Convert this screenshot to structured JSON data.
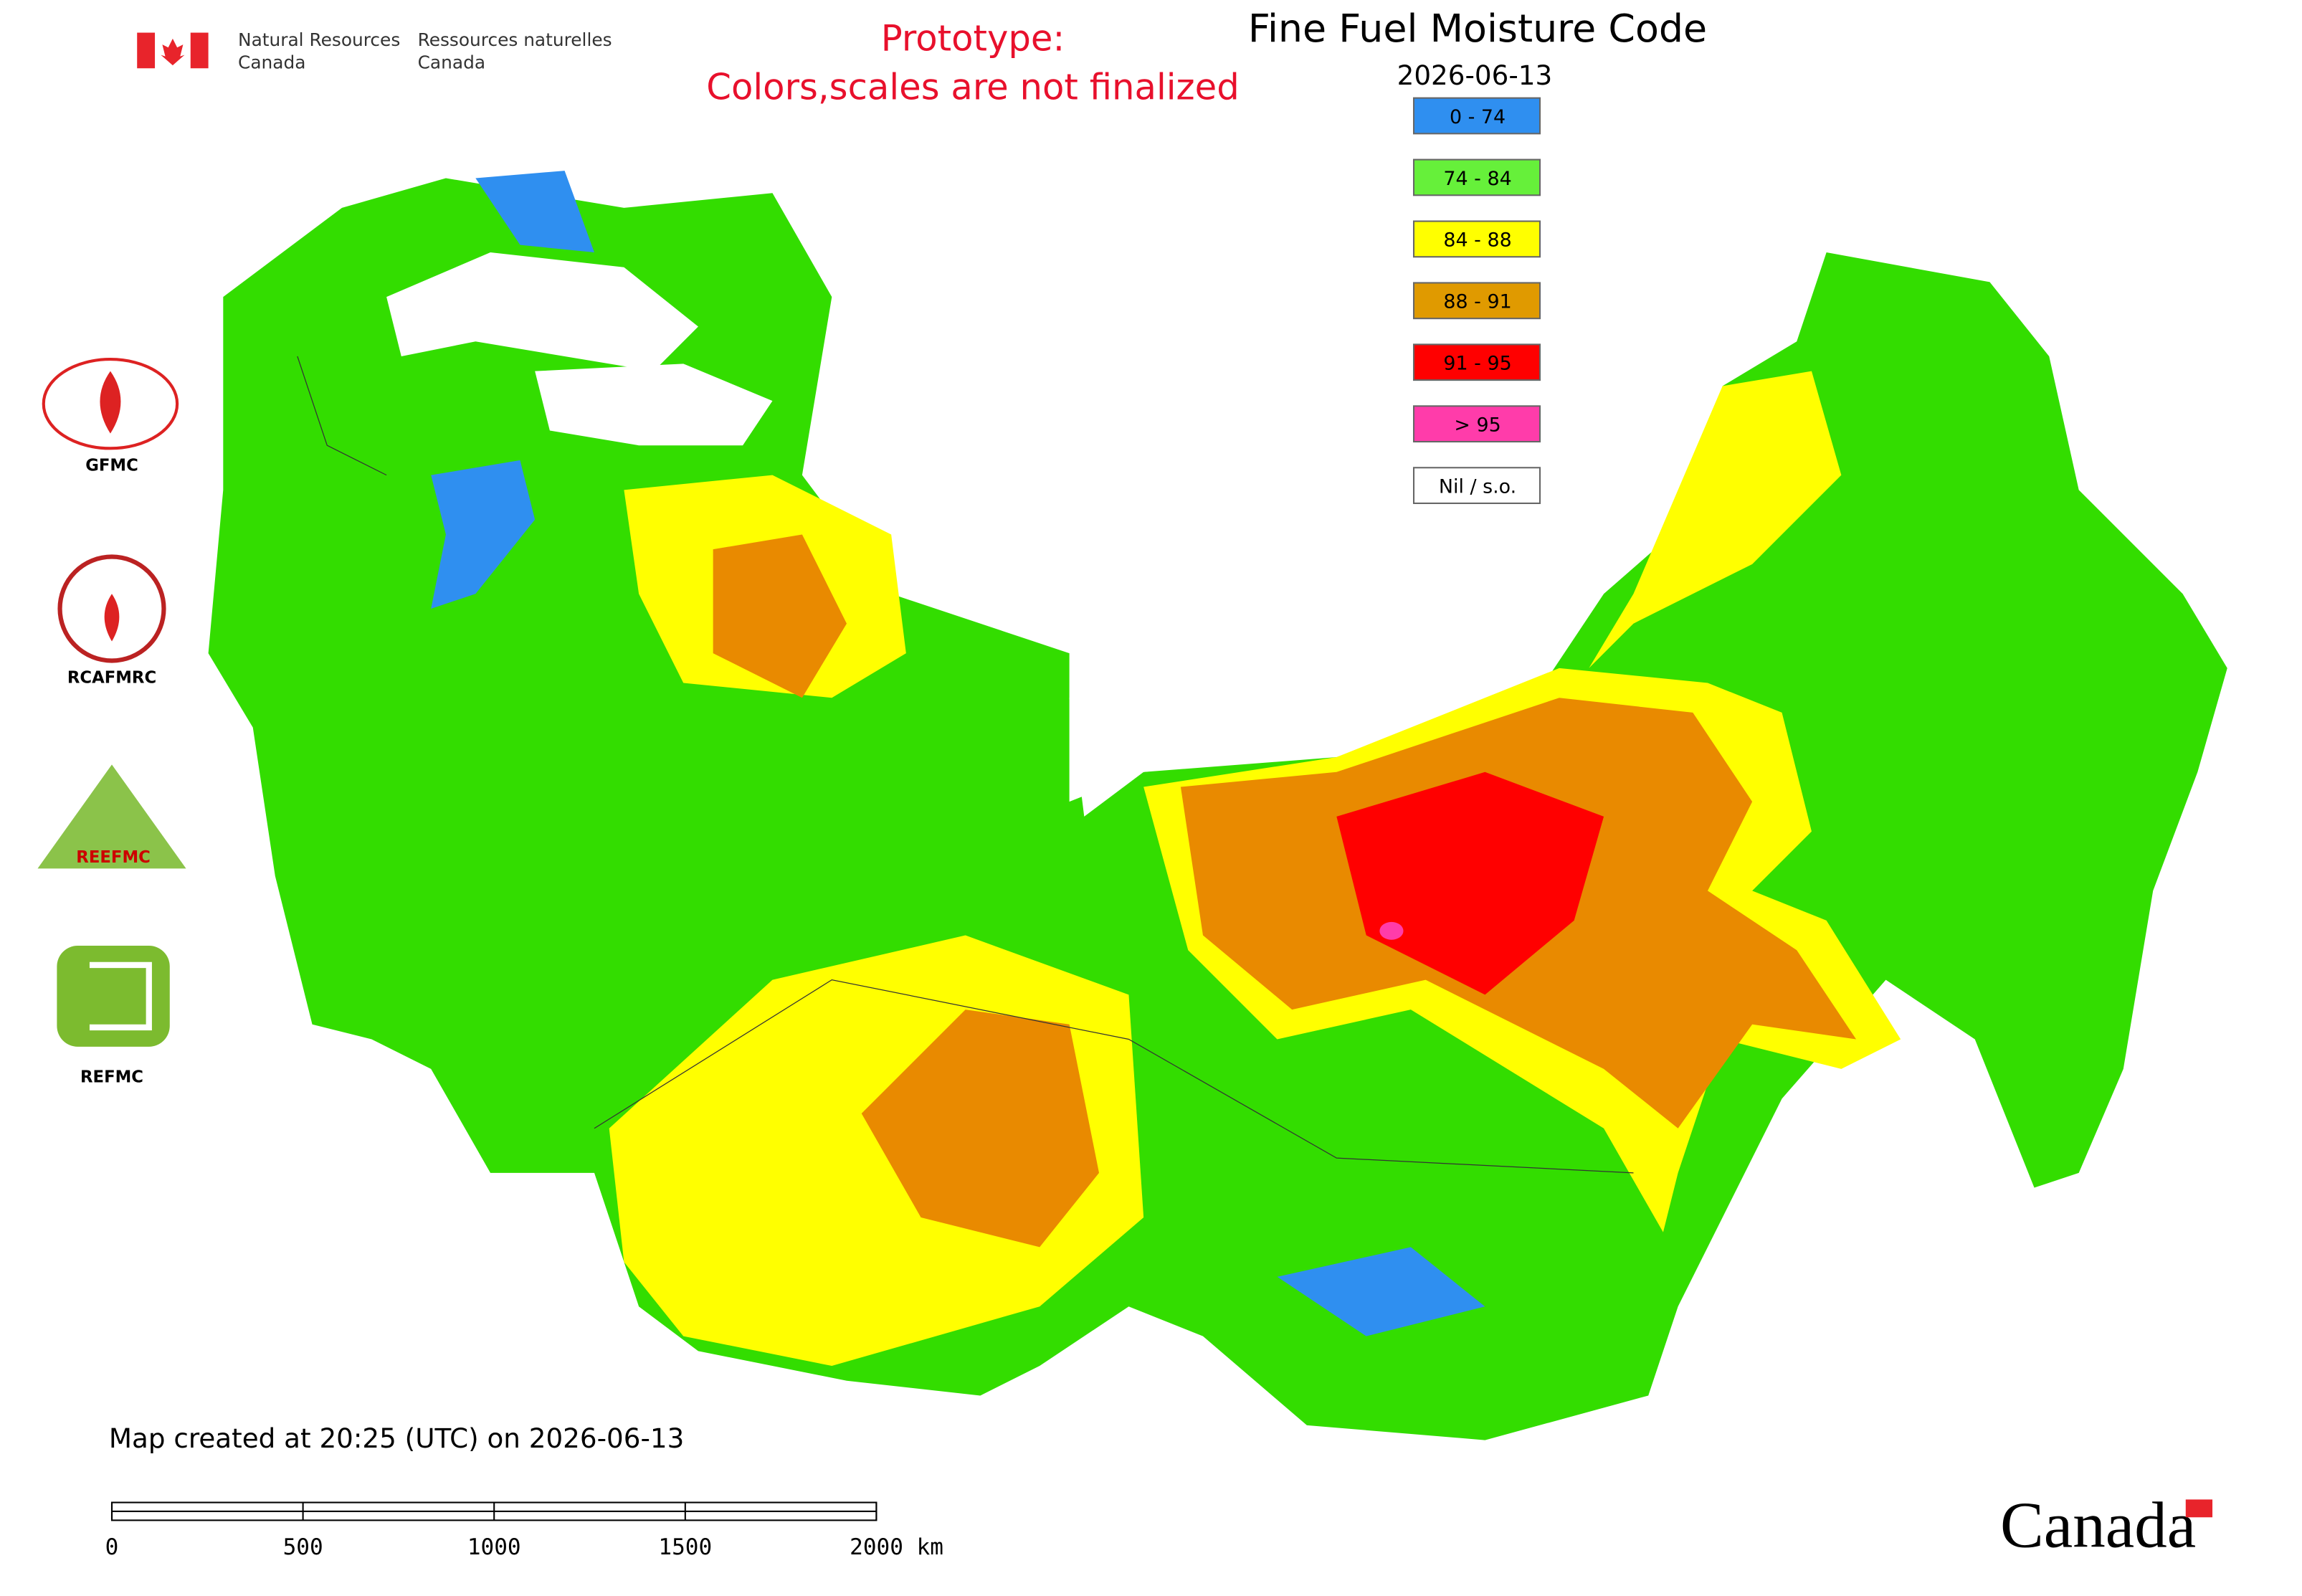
{
  "header": {
    "agency_en": [
      "Natural Resources",
      "Canada"
    ],
    "agency_fr": [
      "Ressources naturelles",
      "Canada"
    ]
  },
  "notice": [
    "Prototype:",
    "Colors,scales are not finalized"
  ],
  "title": "Fine Fuel Moisture Code",
  "date": "2026-06-13",
  "legend": [
    {
      "label": "0 - 74",
      "color": "#2f8ff0"
    },
    {
      "label": "74 - 84",
      "color": "#66f03a"
    },
    {
      "label": "84 - 88",
      "color": "#ffff00"
    },
    {
      "label": "88 - 91",
      "color": "#e09a00"
    },
    {
      "label": "91 - 95",
      "color": "#ff0000"
    },
    {
      "label": "> 95",
      "color": "#ff3caa"
    },
    {
      "label": "Nil / s.o.",
      "color": "#ffffff"
    }
  ],
  "logos": [
    "GFMC",
    "RCAFMRC",
    "REEFMC",
    "REFMC"
  ],
  "created": "Map created at 20:25 (UTC) on 2026-06-13",
  "scale_bar": [
    "0",
    "500",
    "1000",
    "1500",
    "2000 km"
  ],
  "wordmark": "Canada"
}
